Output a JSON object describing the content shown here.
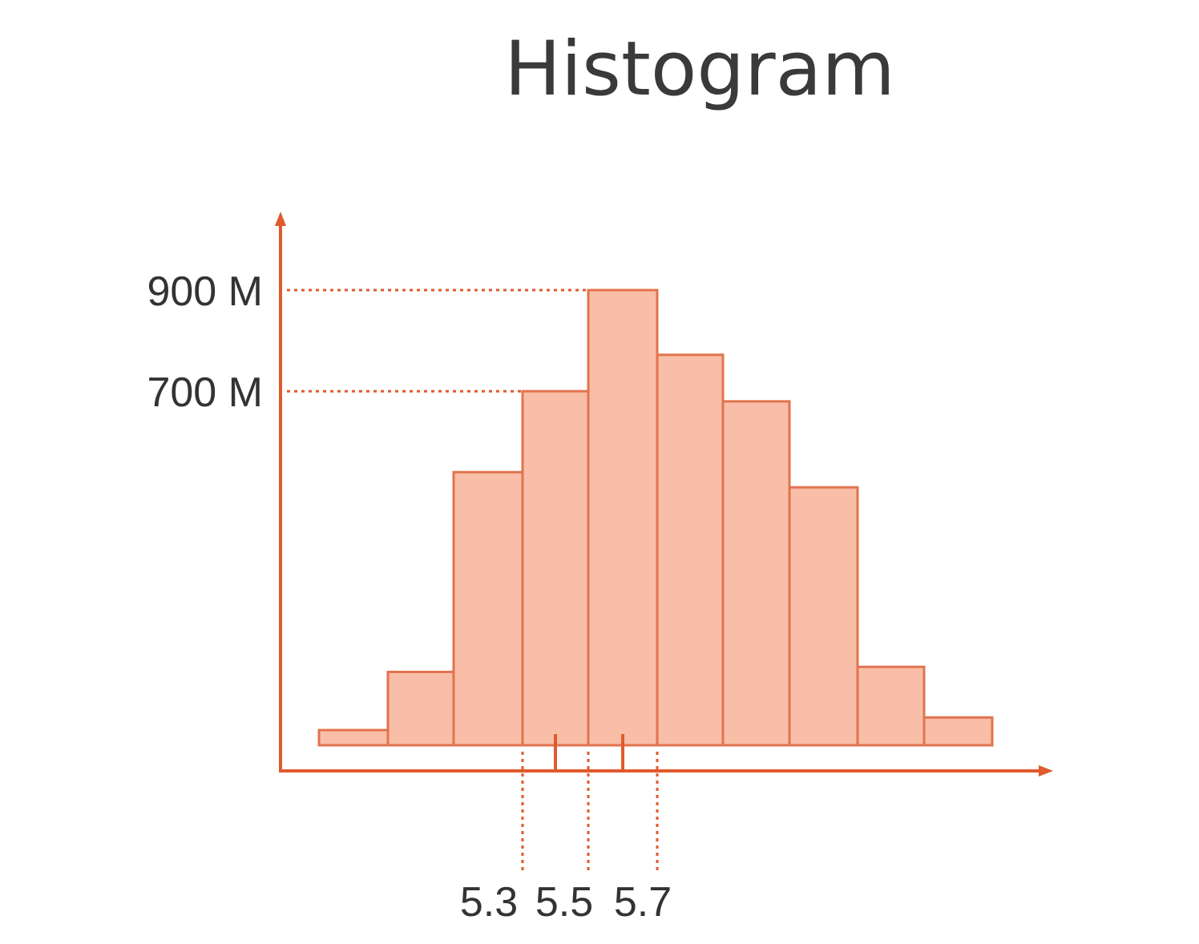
{
  "chart_data": {
    "type": "bar",
    "title": "Histogram",
    "xlabel": "",
    "ylabel": "",
    "bins": [
      {
        "value": 30
      },
      {
        "value": 145
      },
      {
        "value": 540
      },
      {
        "value": 700
      },
      {
        "value": 900
      },
      {
        "value": 772
      },
      {
        "value": 680
      },
      {
        "value": 510
      },
      {
        "value": 155
      },
      {
        "value": 55
      }
    ],
    "y_ticks": [
      {
        "value": 700,
        "label": "700 M"
      },
      {
        "value": 900,
        "label": "900 M"
      }
    ],
    "x_ticks": [
      {
        "label": "5.3",
        "bin_edge": 3
      },
      {
        "label": "5.5",
        "bin_edge": 4
      },
      {
        "label": "5.7",
        "bin_edge": 5
      }
    ],
    "x_markers": [
      3.5,
      4.5
    ],
    "ylim": [
      0,
      1000
    ],
    "grid": false,
    "colors": {
      "bar_fill": "#f8bea7",
      "bar_edge": "#e2734f",
      "axis": "#e05a2d"
    }
  }
}
